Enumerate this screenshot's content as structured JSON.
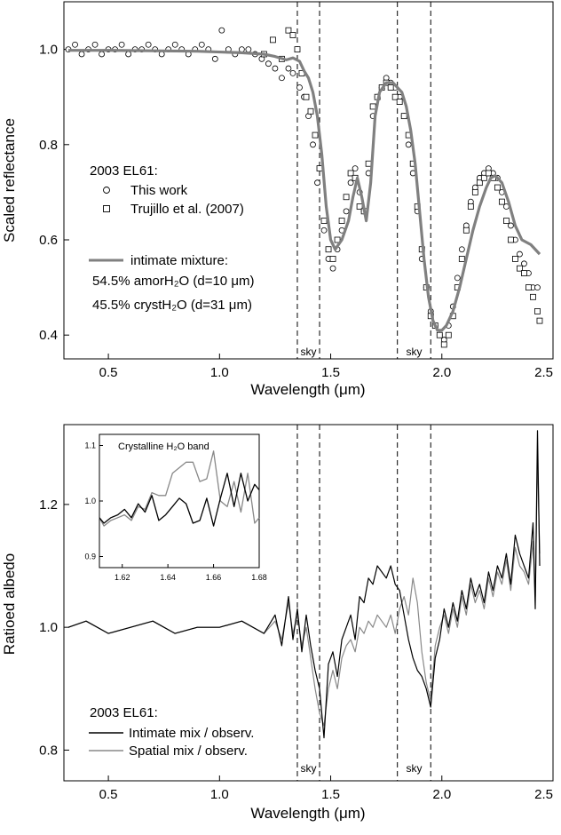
{
  "chart_data": [
    {
      "type": "scatter",
      "xlabel": "Wavelength (μm)",
      "ylabel": "Scaled reflectance",
      "xlim": [
        0.3,
        2.5
      ],
      "ylim": [
        0.35,
        1.1
      ],
      "xticks": [
        "0.5",
        "1.0",
        "1.5",
        "2.0",
        "2.5"
      ],
      "yticks": [
        "0.4",
        "0.6",
        "0.8",
        "1.0"
      ],
      "xtick_values": [
        0.5,
        1.0,
        1.5,
        2.0,
        2.5
      ],
      "ytick_values": [
        0.4,
        0.6,
        0.8,
        1.0
      ],
      "sky_lines": [
        1.35,
        1.45,
        1.8,
        1.95
      ],
      "sky_labels": [
        {
          "text": "sky",
          "x": 1.4,
          "y": 0.365
        },
        {
          "text": "sky",
          "x": 1.875,
          "y": 0.365
        }
      ],
      "legend": {
        "title": "2003 EL61:",
        "items": [
          "This work",
          "Trujillo et al. (2007)",
          "intimate mixture:"
        ],
        "line2": "54.5% amorH₂O (d=10 μm)",
        "line3": "45.5% crystH₂O (d=31 μm)"
      },
      "series": [
        {
          "name": "This work",
          "marker": "circle",
          "x": [
            0.32,
            0.35,
            0.38,
            0.41,
            0.44,
            0.47,
            0.5,
            0.53,
            0.56,
            0.59,
            0.62,
            0.65,
            0.68,
            0.71,
            0.74,
            0.77,
            0.8,
            0.83,
            0.86,
            0.89,
            0.92,
            0.95,
            0.98,
            1.01,
            1.04,
            1.07,
            1.1,
            1.13,
            1.16,
            1.19,
            1.22,
            1.25,
            1.28,
            1.31,
            1.33,
            1.36,
            1.38,
            1.4,
            1.42,
            1.44,
            1.47,
            1.49,
            1.51,
            1.53,
            1.55,
            1.57,
            1.59,
            1.61,
            1.63,
            1.65,
            1.67,
            1.69,
            1.71,
            1.73,
            1.75,
            1.77,
            1.79,
            1.81,
            1.83,
            1.85,
            1.87,
            1.89,
            1.91,
            1.93,
            1.95,
            1.97,
            1.99,
            2.01,
            2.03,
            2.05,
            2.07,
            2.09,
            2.11,
            2.13,
            2.15,
            2.17,
            2.19,
            2.21,
            2.23,
            2.25,
            2.27,
            2.29,
            2.31,
            2.33,
            2.35,
            2.37,
            2.39,
            2.41,
            2.43
          ],
          "y": [
            1.0,
            1.01,
            0.99,
            1.0,
            1.01,
            0.99,
            1.0,
            1.0,
            1.01,
            0.99,
            1.0,
            1.0,
            1.01,
            1.0,
            0.99,
            1.0,
            1.01,
            1.0,
            0.99,
            1.0,
            1.01,
            1.0,
            0.98,
            1.04,
            1.0,
            0.99,
            1.0,
            1.0,
            0.99,
            0.98,
            0.97,
            0.96,
            0.94,
            0.96,
            0.95,
            0.92,
            0.9,
            0.86,
            0.8,
            0.72,
            0.62,
            0.56,
            0.54,
            0.58,
            0.62,
            0.66,
            0.72,
            0.75,
            0.7,
            0.66,
            0.74,
            0.86,
            0.9,
            0.92,
            0.94,
            0.93,
            0.92,
            0.9,
            0.86,
            0.8,
            0.74,
            0.66,
            0.56,
            0.5,
            0.45,
            0.42,
            0.4,
            0.39,
            0.42,
            0.46,
            0.52,
            0.58,
            0.63,
            0.68,
            0.71,
            0.73,
            0.74,
            0.75,
            0.74,
            0.73,
            0.7,
            0.67,
            0.63,
            0.6,
            0.57,
            0.55,
            0.53,
            0.5,
            0.5
          ]
        },
        {
          "name": "Trujillo et al. (2007)",
          "marker": "square",
          "x": [
            1.2,
            1.24,
            1.28,
            1.31,
            1.33,
            1.35,
            1.37,
            1.39,
            1.41,
            1.43,
            1.45,
            1.47,
            1.49,
            1.51,
            1.53,
            1.55,
            1.57,
            1.59,
            1.61,
            1.63,
            1.65,
            1.67,
            1.69,
            1.71,
            1.73,
            1.75,
            1.77,
            1.79,
            1.81,
            1.83,
            1.85,
            1.87,
            1.89,
            1.91,
            1.93,
            1.95,
            1.97,
            1.99,
            2.01,
            2.03,
            2.05,
            2.07,
            2.09,
            2.11,
            2.13,
            2.15,
            2.17,
            2.19,
            2.21,
            2.23,
            2.25,
            2.27,
            2.29,
            2.31,
            2.33,
            2.35,
            2.37,
            2.39,
            2.41,
            2.43,
            2.44
          ],
          "y": [
            0.99,
            1.02,
            0.98,
            1.04,
            1.03,
            1.0,
            0.95,
            0.9,
            0.87,
            0.82,
            0.75,
            0.64,
            0.58,
            0.56,
            0.6,
            0.64,
            0.69,
            0.74,
            0.73,
            0.67,
            0.66,
            0.76,
            0.88,
            0.9,
            0.92,
            0.93,
            0.92,
            0.9,
            0.89,
            0.86,
            0.82,
            0.76,
            0.67,
            0.58,
            0.5,
            0.44,
            0.42,
            0.4,
            0.38,
            0.4,
            0.44,
            0.5,
            0.56,
            0.62,
            0.67,
            0.7,
            0.72,
            0.73,
            0.74,
            0.73,
            0.71,
            0.68,
            0.64,
            0.6,
            0.56,
            0.54,
            0.53,
            0.5,
            0.48,
            0.45,
            0.43
          ]
        },
        {
          "name": "intimate mixture:",
          "marker": "line",
          "x": [
            0.32,
            0.5,
            0.7,
            0.9,
            1.1,
            1.2,
            1.25,
            1.3,
            1.33,
            1.36,
            1.38,
            1.4,
            1.42,
            1.44,
            1.46,
            1.48,
            1.5,
            1.52,
            1.55,
            1.58,
            1.6,
            1.62,
            1.64,
            1.66,
            1.68,
            1.7,
            1.72,
            1.75,
            1.78,
            1.8,
            1.82,
            1.84,
            1.86,
            1.88,
            1.9,
            1.92,
            1.94,
            1.96,
            1.98,
            2.0,
            2.02,
            2.05,
            2.08,
            2.11,
            2.14,
            2.17,
            2.2,
            2.22,
            2.24,
            2.27,
            2.3,
            2.33,
            2.36,
            2.4,
            2.44
          ],
          "y": [
            0.998,
            0.998,
            0.997,
            0.996,
            0.993,
            0.99,
            0.985,
            0.978,
            0.982,
            0.975,
            0.955,
            0.94,
            0.91,
            0.86,
            0.78,
            0.67,
            0.6,
            0.58,
            0.6,
            0.64,
            0.69,
            0.73,
            0.69,
            0.64,
            0.72,
            0.86,
            0.91,
            0.93,
            0.93,
            0.92,
            0.91,
            0.88,
            0.83,
            0.76,
            0.66,
            0.56,
            0.48,
            0.43,
            0.41,
            0.41,
            0.42,
            0.45,
            0.5,
            0.56,
            0.62,
            0.67,
            0.71,
            0.73,
            0.735,
            0.72,
            0.68,
            0.63,
            0.6,
            0.59,
            0.57
          ]
        }
      ]
    },
    {
      "type": "line",
      "xlabel": "Wavelength (μm)",
      "ylabel": "Ratioed albedo",
      "xlim": [
        0.3,
        2.5
      ],
      "ylim": [
        0.75,
        1.33
      ],
      "xticks": [
        "0.5",
        "1.0",
        "1.5",
        "2.0",
        "2.5"
      ],
      "yticks": [
        "0.8",
        "1.0",
        "1.2"
      ],
      "xtick_values": [
        0.5,
        1.0,
        1.5,
        2.0,
        2.5
      ],
      "ytick_values": [
        0.8,
        1.0,
        1.2
      ],
      "sky_lines": [
        1.35,
        1.45,
        1.8,
        1.95
      ],
      "sky_labels": [
        {
          "text": "sky",
          "x": 1.4,
          "y": 0.77
        },
        {
          "text": "sky",
          "x": 1.875,
          "y": 0.77
        }
      ],
      "legend": {
        "title": "2003 EL61:",
        "items": [
          "Intimate mix / observ.",
          "Spatial mix / observ."
        ]
      },
      "series": [
        {
          "name": "Intimate mix / observ.",
          "color": "#000000",
          "x": [
            0.32,
            0.4,
            0.5,
            0.6,
            0.7,
            0.8,
            0.9,
            1.0,
            1.1,
            1.2,
            1.25,
            1.28,
            1.31,
            1.33,
            1.35,
            1.37,
            1.39,
            1.41,
            1.43,
            1.45,
            1.47,
            1.49,
            1.51,
            1.53,
            1.55,
            1.57,
            1.59,
            1.61,
            1.63,
            1.65,
            1.67,
            1.69,
            1.71,
            1.73,
            1.75,
            1.77,
            1.79,
            1.81,
            1.83,
            1.85,
            1.87,
            1.89,
            1.91,
            1.93,
            1.95,
            1.97,
            1.99,
            2.01,
            2.03,
            2.05,
            2.07,
            2.09,
            2.11,
            2.13,
            2.15,
            2.17,
            2.19,
            2.21,
            2.23,
            2.25,
            2.27,
            2.29,
            2.31,
            2.33,
            2.35,
            2.37,
            2.39,
            2.41,
            2.42,
            2.43,
            2.44
          ],
          "y": [
            1.0,
            1.01,
            0.99,
            1.0,
            1.01,
            0.99,
            1.0,
            1.0,
            1.01,
            0.99,
            1.02,
            0.97,
            1.05,
            0.98,
            1.03,
            0.96,
            1.02,
            0.97,
            0.93,
            0.9,
            0.82,
            0.94,
            0.96,
            0.92,
            0.98,
            1.0,
            1.02,
            0.98,
            1.05,
            1.04,
            1.08,
            1.07,
            1.1,
            1.09,
            1.08,
            1.1,
            1.07,
            1.06,
            1.02,
            0.98,
            0.95,
            0.93,
            0.92,
            0.9,
            0.87,
            0.95,
            0.98,
            1.03,
            1.0,
            1.04,
            1.01,
            1.06,
            1.03,
            1.08,
            1.05,
            1.07,
            1.04,
            1.09,
            1.06,
            1.1,
            1.08,
            1.12,
            1.07,
            1.15,
            1.12,
            1.1,
            1.08,
            1.17,
            1.03,
            1.32,
            1.1
          ]
        },
        {
          "name": "Spatial mix / observ.",
          "color": "#888888",
          "x": [
            0.32,
            0.4,
            0.5,
            0.6,
            0.7,
            0.8,
            0.9,
            1.0,
            1.1,
            1.2,
            1.25,
            1.28,
            1.31,
            1.33,
            1.35,
            1.37,
            1.39,
            1.41,
            1.43,
            1.45,
            1.47,
            1.49,
            1.51,
            1.53,
            1.55,
            1.57,
            1.59,
            1.61,
            1.63,
            1.65,
            1.67,
            1.69,
            1.71,
            1.73,
            1.75,
            1.77,
            1.79,
            1.81,
            1.83,
            1.85,
            1.87,
            1.89,
            1.91,
            1.93,
            1.95,
            1.97,
            1.99,
            2.01,
            2.03,
            2.05,
            2.07,
            2.09,
            2.11,
            2.13,
            2.15,
            2.17,
            2.19,
            2.21,
            2.23,
            2.25,
            2.27,
            2.29,
            2.31,
            2.33,
            2.35,
            2.37,
            2.39,
            2.41,
            2.42,
            2.43,
            2.44
          ],
          "y": [
            1.0,
            1.01,
            0.99,
            1.0,
            1.01,
            0.99,
            1.0,
            1.0,
            1.01,
            0.99,
            1.01,
            0.98,
            1.04,
            0.99,
            1.02,
            0.97,
            1.0,
            0.95,
            0.9,
            0.86,
            0.84,
            0.9,
            0.93,
            0.9,
            0.95,
            0.97,
            0.98,
            0.96,
            1.0,
            0.99,
            1.01,
            1.0,
            1.02,
            1.01,
            1.0,
            1.02,
            0.99,
            1.03,
            1.05,
            1.02,
            1.08,
            1.04,
            0.96,
            0.91,
            0.88,
            0.97,
            1.0,
            1.02,
            0.99,
            1.03,
            1.0,
            1.05,
            1.02,
            1.07,
            1.04,
            1.06,
            1.03,
            1.08,
            1.05,
            1.09,
            1.07,
            1.11,
            1.06,
            1.13,
            1.1,
            1.09,
            1.07,
            1.14,
            1.05,
            1.28,
            1.12
          ]
        }
      ]
    },
    {
      "type": "line",
      "title": "Crystalline H₂O band",
      "xlim": [
        1.61,
        1.68
      ],
      "ylim": [
        0.88,
        1.12
      ],
      "xticks": [
        "1.62",
        "1.64",
        "1.66",
        "1.68"
      ],
      "yticks": [
        "0.9",
        "1.0",
        "1.1"
      ],
      "xtick_values": [
        1.62,
        1.64,
        1.66,
        1.68
      ],
      "ytick_values": [
        0.9,
        1.0,
        1.1
      ],
      "series": [
        {
          "color": "#000000",
          "x": [
            1.61,
            1.612,
            1.615,
            1.618,
            1.621,
            1.624,
            1.627,
            1.63,
            1.633,
            1.636,
            1.639,
            1.642,
            1.645,
            1.648,
            1.651,
            1.654,
            1.657,
            1.66,
            1.663,
            1.666,
            1.669,
            1.672,
            1.675,
            1.678,
            1.68
          ],
          "y": [
            0.97,
            0.96,
            0.97,
            0.975,
            0.985,
            0.97,
            0.995,
            0.98,
            1.01,
            0.965,
            0.975,
            0.99,
            1.005,
            0.995,
            0.96,
            0.965,
            1.005,
            0.955,
            1.005,
            1.05,
            0.99,
            1.05,
            1.0,
            1.03,
            1.02
          ]
        },
        {
          "color": "#888888",
          "x": [
            1.61,
            1.612,
            1.615,
            1.618,
            1.621,
            1.624,
            1.627,
            1.63,
            1.633,
            1.636,
            1.639,
            1.642,
            1.645,
            1.648,
            1.651,
            1.654,
            1.657,
            1.66,
            1.663,
            1.666,
            1.669,
            1.672,
            1.675,
            1.678,
            1.68
          ],
          "y": [
            0.97,
            0.955,
            0.965,
            0.97,
            0.975,
            0.965,
            0.99,
            0.985,
            1.015,
            1.01,
            1.01,
            1.05,
            1.06,
            1.07,
            1.07,
            1.035,
            1.04,
            1.09,
            1.0,
            0.99,
            1.035,
            0.98,
            1.05,
            0.96,
            0.97
          ]
        }
      ]
    }
  ]
}
